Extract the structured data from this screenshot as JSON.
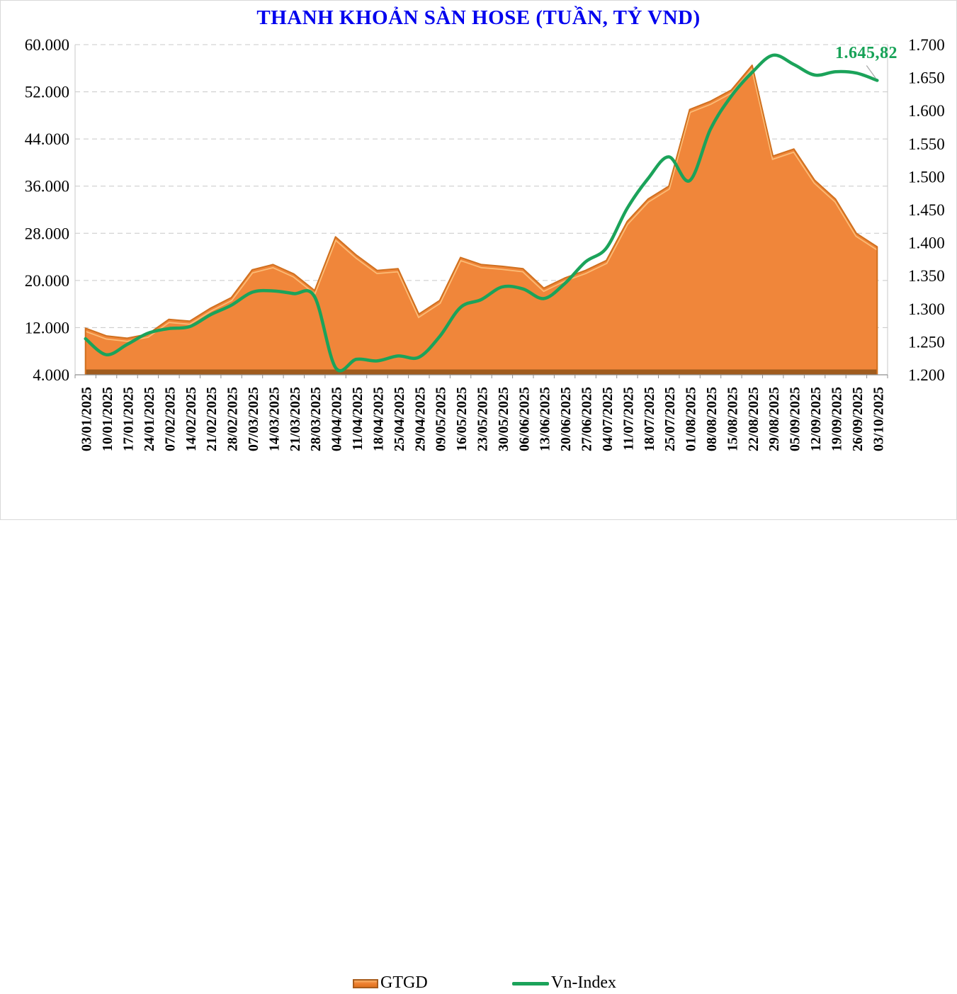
{
  "frame": {
    "title": "THANH KHOẢN SÀN HOSE (TUẦN, TỶ VND)"
  },
  "chart_data": {
    "type": "area+line combo",
    "title": "THANH KHOẢN SÀN HOSE (TUẦN, TỶ VND)",
    "grid": "horizontal dashed",
    "legend_position": "bottom",
    "categories": [
      "03/01/2025",
      "10/01/2025",
      "17/01/2025",
      "24/01/2025",
      "07/02/2025",
      "14/02/2025",
      "21/02/2025",
      "28/02/2025",
      "07/03/2025",
      "14/03/2025",
      "21/03/2025",
      "28/03/2025",
      "04/04/2025",
      "11/04/2025",
      "18/04/2025",
      "25/04/2025",
      "29/04/2025",
      "09/05/2025",
      "16/05/2025",
      "23/05/2025",
      "30/05/2025",
      "06/06/2025",
      "13/06/2025",
      "20/06/2025",
      "27/06/2025",
      "04/07/2025",
      "11/07/2025",
      "18/07/2025",
      "25/07/2025",
      "01/08/2025",
      "08/08/2025",
      "15/08/2025",
      "22/08/2025",
      "29/08/2025",
      "05/09/2025",
      "12/09/2025",
      "19/09/2025",
      "26/09/2025",
      "03/10/2025"
    ],
    "series": [
      {
        "name": "GTGD",
        "type": "area",
        "axis": "left",
        "color": "#f0863a",
        "values": [
          11900,
          10600,
          10200,
          10900,
          13400,
          13100,
          15300,
          17100,
          21800,
          22700,
          21100,
          18300,
          27400,
          24300,
          21700,
          22000,
          14300,
          16600,
          23900,
          22700,
          22400,
          22000,
          18700,
          20400,
          21700,
          23400,
          30000,
          33800,
          36000,
          49000,
          50400,
          52300,
          56500,
          41100,
          42300,
          37000,
          33800,
          28000,
          25700
        ]
      },
      {
        "name": "Vn-Index",
        "type": "line",
        "axis": "right",
        "color": "#1ba35a",
        "values": [
          1254.6,
          1230.4,
          1246,
          1263,
          1270,
          1273,
          1291,
          1305.4,
          1325,
          1327,
          1323,
          1318,
          1211,
          1223.5,
          1221,
          1228.5,
          1226.5,
          1258,
          1302,
          1314,
          1333,
          1330,
          1315.5,
          1338,
          1371,
          1392,
          1452,
          1497,
          1530,
          1494,
          1572,
          1622,
          1658,
          1684,
          1670,
          1654,
          1659,
          1657,
          1645.82
        ]
      }
    ],
    "left_axis": {
      "min": 4000,
      "max": 60000,
      "step": 8000,
      "tick_labels": [
        "60.000",
        "52.000",
        "44.000",
        "36.000",
        "28.000",
        "20.000",
        "12.000",
        "4.000"
      ]
    },
    "right_axis": {
      "min": 1200,
      "max": 1700,
      "step": 50,
      "tick_labels": [
        "1.700",
        "1.650",
        "1.600",
        "1.550",
        "1.500",
        "1.450",
        "1.400",
        "1.350",
        "1.300",
        "1.250",
        "1.200"
      ]
    },
    "annotation": {
      "text": "1.645,82",
      "series": "Vn-Index",
      "point": "03/10/2025"
    }
  },
  "legend": {
    "items": [
      {
        "label": "GTGD"
      },
      {
        "label": "Vn-Index"
      }
    ]
  },
  "annotation": {
    "label": "1.645,82"
  },
  "colors": {
    "title": "#0000ee",
    "area_fill": "#f0863a",
    "area_edge": "#d0701f",
    "area_highlight": "#fbbc76",
    "area_bottom_band": "#a05c1e",
    "line": "#1ba35a",
    "annotation_text": "#17a257",
    "gridline": "#c8c8c8",
    "axis_text": "#000000",
    "frame_border": "#d9d9d9"
  }
}
